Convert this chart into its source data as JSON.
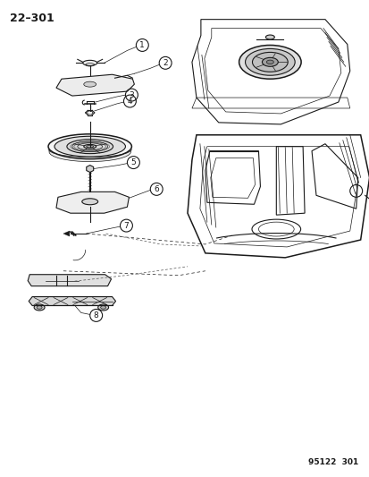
{
  "page_number": "22–301",
  "footer": "95122  301",
  "background_color": "#ffffff",
  "line_color": "#1a1a1a",
  "fig_width": 4.14,
  "fig_height": 5.33,
  "dpi": 100
}
